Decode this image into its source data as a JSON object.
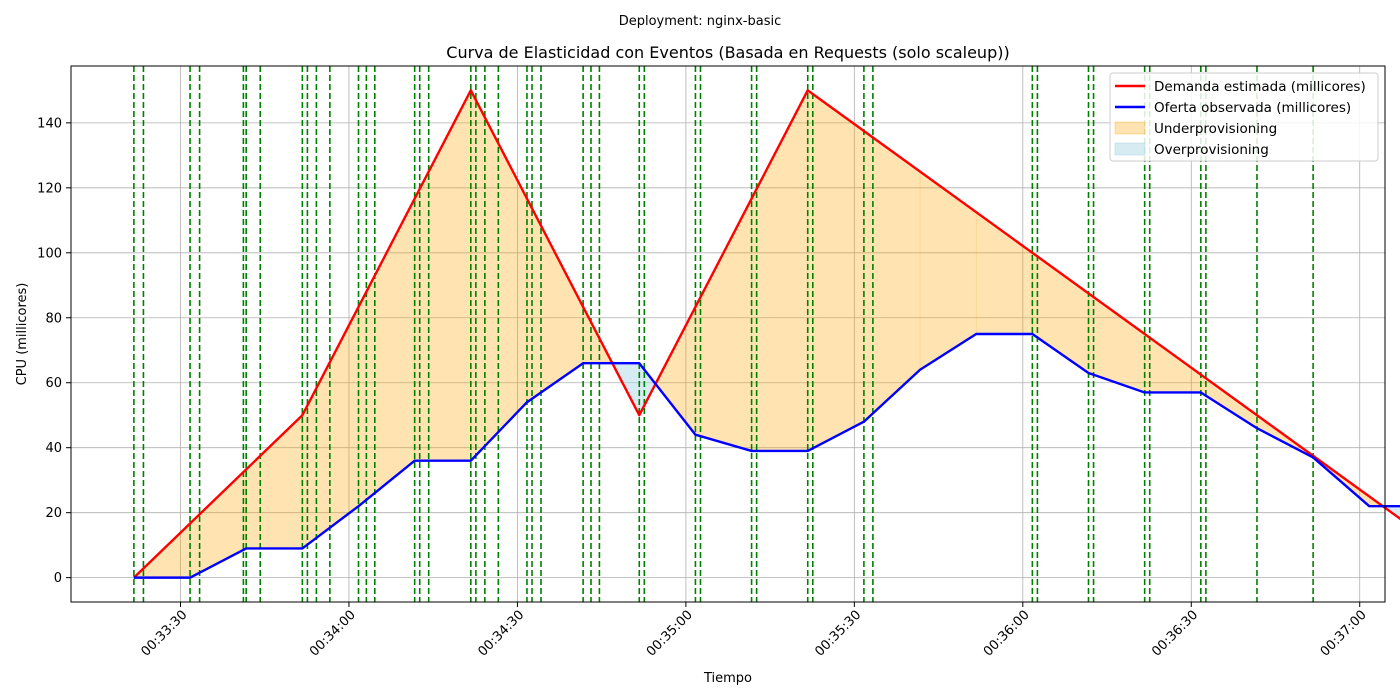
{
  "chart_data": {
    "type": "line",
    "suptitle": "Deployment: nginx-basic",
    "title": "Curva de Elasticidad con Eventos (Basada en Requests (solo scaleup))",
    "xlabel": "Tiempo",
    "ylabel": "CPU (millicores)",
    "x_tick_labels": [
      "00:33:30",
      "00:34:00",
      "00:34:30",
      "00:35:00",
      "00:35:30",
      "00:36:00",
      "00:36:30",
      "00:37:00"
    ],
    "x_tick_seconds": [
      0,
      30,
      60,
      90,
      120,
      150,
      180,
      210
    ],
    "xlim_seconds": [
      -19.5,
      214.5
    ],
    "y_ticks": [
      0,
      20,
      40,
      60,
      80,
      100,
      120,
      140
    ],
    "ylim": [
      -7.5,
      157.5
    ],
    "grid": true,
    "legend_position": "top-right",
    "series": [
      {
        "name": "Demanda estimada (millicores)",
        "color": "#ff0000",
        "points": [
          [
            -8.3,
            0
          ],
          [
            21.7,
            50
          ],
          [
            51.7,
            150
          ],
          [
            81.7,
            50
          ],
          [
            111.7,
            150
          ],
          [
            221.7,
            12.5
          ]
        ]
      },
      {
        "name": "Oferta observada (millicores)",
        "color": "#0000ff",
        "points": [
          [
            -8.3,
            0
          ],
          [
            1.7,
            0
          ],
          [
            11.7,
            9
          ],
          [
            21.7,
            9
          ],
          [
            31.7,
            22
          ],
          [
            41.7,
            36
          ],
          [
            51.7,
            36
          ],
          [
            61.7,
            54
          ],
          [
            71.7,
            66
          ],
          [
            81.7,
            66
          ],
          [
            91.7,
            44
          ],
          [
            101.7,
            39
          ],
          [
            111.7,
            39
          ],
          [
            121.7,
            48
          ],
          [
            131.7,
            64
          ],
          [
            141.7,
            75
          ],
          [
            151.7,
            75
          ],
          [
            161.7,
            63
          ],
          [
            171.7,
            57
          ],
          [
            181.7,
            57
          ],
          [
            191.7,
            46
          ],
          [
            201.7,
            37
          ],
          [
            211.7,
            22
          ],
          [
            221.7,
            22
          ]
        ]
      }
    ],
    "fills": [
      {
        "name": "Underprovisioning",
        "color": "#ffa500",
        "opacity": 0.3
      },
      {
        "name": "Overprovisioning",
        "color": "#add8e6",
        "opacity": 0.5
      }
    ],
    "event_line_color": "#008000",
    "event_lines_seconds": [
      -8.3,
      -6.6,
      1.7,
      3.4,
      11.2,
      11.7,
      14.2,
      21.7,
      22.6,
      24.2,
      26.6,
      31.7,
      33.1,
      34.6,
      41.7,
      42.6,
      44.2,
      51.7,
      52.6,
      54.2,
      56.6,
      61.7,
      62.6,
      64.2,
      71.7,
      73.1,
      74.6,
      81.7,
      82.6,
      91.7,
      92.6,
      101.7,
      102.6,
      111.7,
      112.6,
      121.7,
      123.3,
      151.7,
      152.6,
      161.7,
      162.6,
      171.7,
      172.6,
      181.7,
      182.6,
      191.7,
      201.7
    ]
  }
}
